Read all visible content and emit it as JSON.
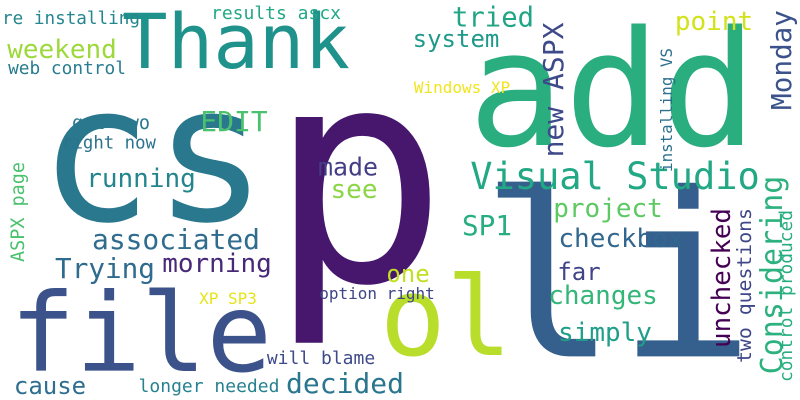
{
  "cloud": {
    "words": [
      {
        "text": "p",
        "color": "#46176d"
      },
      {
        "text": "cs",
        "color": "#29788e"
      },
      {
        "text": "add",
        "color": "#2aae80"
      },
      {
        "text": "li",
        "color": "#35608d"
      },
      {
        "text": "Thank",
        "color": "#20928c"
      },
      {
        "text": "file",
        "color": "#3b528b"
      },
      {
        "text": "ol",
        "color": "#b8dd2b"
      },
      {
        "text": "Visual Studio",
        "color": "#22a884"
      },
      {
        "text": "Considering",
        "color": "#2db17f"
      },
      {
        "text": "Monday",
        "color": "#3b528b"
      },
      {
        "text": "changes",
        "color": "#34b679"
      },
      {
        "text": "project",
        "color": "#5dc962"
      },
      {
        "text": "unchecked",
        "color": "#440154"
      },
      {
        "text": "checkbox",
        "color": "#31668e"
      },
      {
        "text": "associated",
        "color": "#2f6c8e"
      },
      {
        "text": "morning",
        "color": "#482979"
      },
      {
        "text": "Trying",
        "color": "#2f6b8e"
      },
      {
        "text": "decided",
        "color": "#2a768e"
      },
      {
        "text": "new ASPX",
        "color": "#3e4989"
      },
      {
        "text": "system",
        "color": "#1f9a8a"
      },
      {
        "text": "tried",
        "color": "#21a585"
      },
      {
        "text": "point",
        "color": "#d2e21b"
      },
      {
        "text": "weekend",
        "color": "#9dd93b"
      },
      {
        "text": "ASPX page",
        "color": "#4ac16d"
      },
      {
        "text": "running",
        "color": "#25858e"
      },
      {
        "text": "made",
        "color": "#433e85"
      },
      {
        "text": "see",
        "color": "#8bd646"
      },
      {
        "text": "one",
        "color": "#c2df23"
      },
      {
        "text": "SP1",
        "color": "#27ad81"
      },
      {
        "text": "far",
        "color": "#414487"
      },
      {
        "text": "simply",
        "color": "#1f9e89"
      },
      {
        "text": "EDIT",
        "color": "#4ac16d"
      },
      {
        "text": "cause",
        "color": "#2e6e8e"
      },
      {
        "text": "got two",
        "color": "#2a788e"
      },
      {
        "text": "right now",
        "color": "#2c728e"
      },
      {
        "text": "results ascx",
        "color": "#22a884"
      },
      {
        "text": "re installing",
        "color": "#24868e"
      },
      {
        "text": "web control",
        "color": "#287c8e"
      },
      {
        "text": "Windows XP",
        "color": "#f1e51d"
      },
      {
        "text": "installing VS",
        "color": "#2d708e"
      },
      {
        "text": "two questions",
        "color": "#3f4788"
      },
      {
        "text": "control produced",
        "color": "#27ad81"
      },
      {
        "text": "XP SP3",
        "color": "#e5e419"
      },
      {
        "text": "option right",
        "color": "#404588"
      },
      {
        "text": "will blame",
        "color": "#3e4a89"
      },
      {
        "text": "longer needed",
        "color": "#26828e"
      }
    ]
  }
}
